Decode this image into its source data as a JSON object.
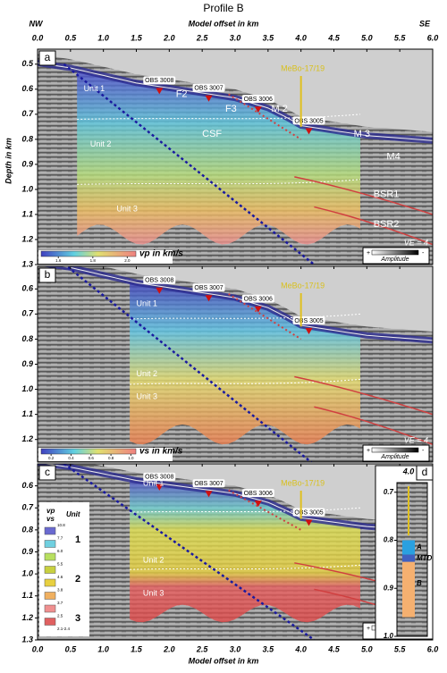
{
  "title": "Profile B",
  "x_label": "Model offset in km",
  "direction_left": "NW",
  "direction_right": "SE",
  "y_label": "Depth in km",
  "xlim": [
    0,
    6
  ],
  "xticks": [
    {
      "value": 0,
      "label": "0.0"
    },
    0.5,
    {
      "value": 1,
      "label": "1.0"
    },
    1.5,
    {
      "value": 2,
      "label": "2.0"
    },
    2.5,
    {
      "value": 3,
      "label": "3.0"
    },
    3.5,
    {
      "value": 4,
      "label": "4.0"
    },
    4.5,
    {
      "value": 5,
      "label": "5.0"
    },
    5.5,
    {
      "value": 6,
      "label": "6.0"
    }
  ],
  "panels": [
    {
      "letter": "a",
      "ylim": [
        0.44,
        1.3
      ],
      "yticks": [
        0.5,
        0.6,
        0.7,
        0.8,
        0.9,
        {
          "value": 1,
          "label": "1.0"
        },
        1.1,
        1.2,
        1.3
      ],
      "stations": [
        "OBS 3008",
        "OBS 3007",
        "OBS 3006",
        "OBS 3005"
      ],
      "borehole": "MeBo-17/19",
      "units": [
        "Unit 1",
        "Unit 2",
        "Unit 3"
      ],
      "annotations": [
        "F2",
        "F3",
        "M 2",
        "M 3",
        "M4",
        "CSF",
        "BSR1",
        "BSR2"
      ],
      "ve": "VE = 4",
      "colorbar": {
        "label": "vp in km/s",
        "lim": [
          1.5,
          2.05
        ],
        "ticks": [
          1.6,
          1.8,
          {
            "value": 2,
            "label": "2.0"
          }
        ]
      },
      "amplitude": {
        "label": "Amplitude",
        "plus": "+",
        "minus": "-"
      }
    },
    {
      "letter": "b",
      "ylim": [
        0.51,
        1.29
      ],
      "yticks": [
        0.6,
        0.7,
        0.8,
        0.9,
        {
          "value": 1,
          "label": "1.0"
        },
        1.1,
        1.2
      ],
      "stations": [
        "OBS 3008",
        "OBS 3007",
        "OBS 3006",
        "OBS 3005"
      ],
      "borehole": "MeBo-17/19",
      "units": [
        "Unit 1",
        "Unit 2",
        "Unit 3"
      ],
      "ve": "VE = 4",
      "colorbar": {
        "label": "vs in km/s",
        "lim": [
          0.1,
          1.05
        ],
        "ticks": [
          0.2,
          0.4,
          0.6,
          0.8,
          {
            "value": 1,
            "label": "1.0"
          }
        ]
      },
      "amplitude": {
        "label": "Amplitude",
        "plus": "+",
        "minus": "-"
      }
    },
    {
      "letter": "c",
      "ylim": [
        0.5,
        1.3
      ],
      "yticks": [
        0.6,
        0.7,
        0.8,
        0.9,
        {
          "value": 1,
          "label": "1.0"
        },
        1.1,
        1.2,
        1.3
      ],
      "stations": [
        "OBS 3008",
        "OBS 3007",
        "OBS 3006",
        "OBS 3005"
      ],
      "borehole": "MeBo-17/19",
      "units": [
        "Unit 1",
        "Unit 2",
        "Unit 3"
      ],
      "ve": "VE = 4",
      "amplitude": {
        "label": "Amplitude",
        "plus": "+",
        "minus": "-"
      },
      "legend": {
        "ratio_top": "vp",
        "ratio_bottom": "vs",
        "unit_header": "Unit",
        "unit_numbers": [
          "1",
          "2",
          "3"
        ],
        "ratio_labels": [
          "10.8",
          "7.7",
          "6.0",
          "5.5",
          "4.6",
          "3.8",
          "3.7",
          "2.5",
          "2.1-2.4"
        ]
      },
      "inset": {
        "letter": "d",
        "offset": "4.0",
        "ylim": [
          0.68,
          1.0
        ],
        "yticks": [
          0.7,
          0.8,
          0.9,
          {
            "value": 1,
            "label": "1.0"
          }
        ],
        "labels": [
          "A",
          "MTD",
          "B"
        ]
      }
    }
  ]
}
